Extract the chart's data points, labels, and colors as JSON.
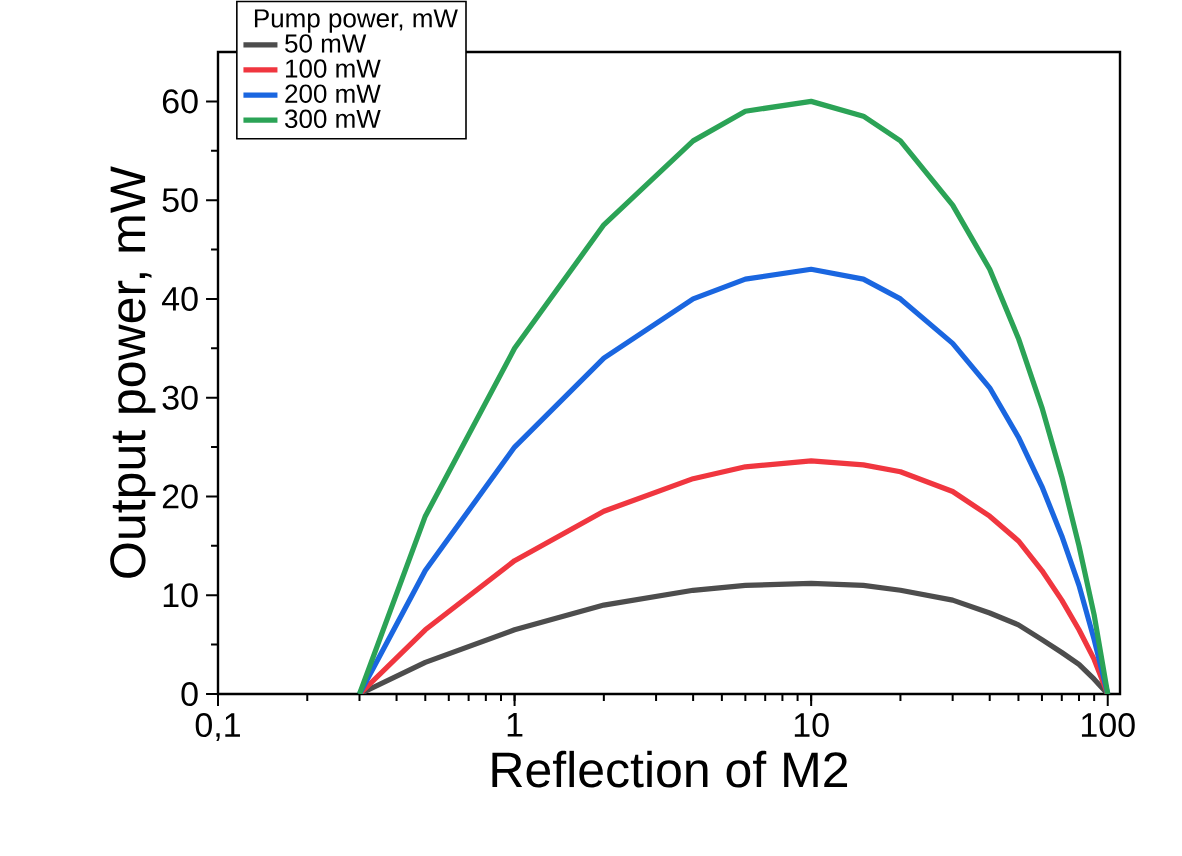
{
  "chart_data": {
    "type": "line",
    "xlabel": "Reflection of M2",
    "ylabel": "Output power, mW",
    "legend_title": "Pump power, mW",
    "x": [
      0.3,
      0.5,
      1,
      2,
      4,
      6,
      10,
      15,
      20,
      30,
      40,
      50,
      60,
      70,
      80,
      90,
      100
    ],
    "series": [
      {
        "name": "50 mW",
        "color": "#4d4d4d",
        "values": [
          0,
          3.2,
          6.5,
          9,
          10.5,
          11,
          11.2,
          11,
          10.5,
          9.5,
          8.2,
          7,
          5.5,
          4.2,
          3,
          1.5,
          0
        ]
      },
      {
        "name": "100 mW",
        "color": "#f0363f",
        "values": [
          0,
          6.5,
          13.5,
          18.5,
          21.8,
          23,
          23.6,
          23.2,
          22.5,
          20.5,
          18,
          15.5,
          12.5,
          9.5,
          6.5,
          3.5,
          0
        ]
      },
      {
        "name": "200 mW",
        "color": "#1a66e0",
        "values": [
          0,
          12.5,
          25,
          34,
          40,
          42,
          43,
          42,
          40,
          35.5,
          31,
          26,
          21,
          16,
          11,
          5.5,
          0
        ]
      },
      {
        "name": "300 mW",
        "color": "#2ba356",
        "values": [
          0,
          18,
          35,
          47.5,
          56,
          59,
          60,
          58.5,
          56,
          49.5,
          43,
          36,
          29,
          22,
          15,
          8,
          0
        ]
      }
    ],
    "log": "x",
    "xlim": [
      0.1,
      110
    ],
    "xticks": [
      {
        "value": 0.1,
        "label": "0,1"
      },
      1,
      10,
      100
    ],
    "ylim": [
      0,
      65
    ],
    "yticks": [
      0,
      10,
      20,
      30,
      40,
      50,
      60
    ],
    "grid": false,
    "legend": "top left",
    "marker": "none",
    "line_style": "solid"
  }
}
